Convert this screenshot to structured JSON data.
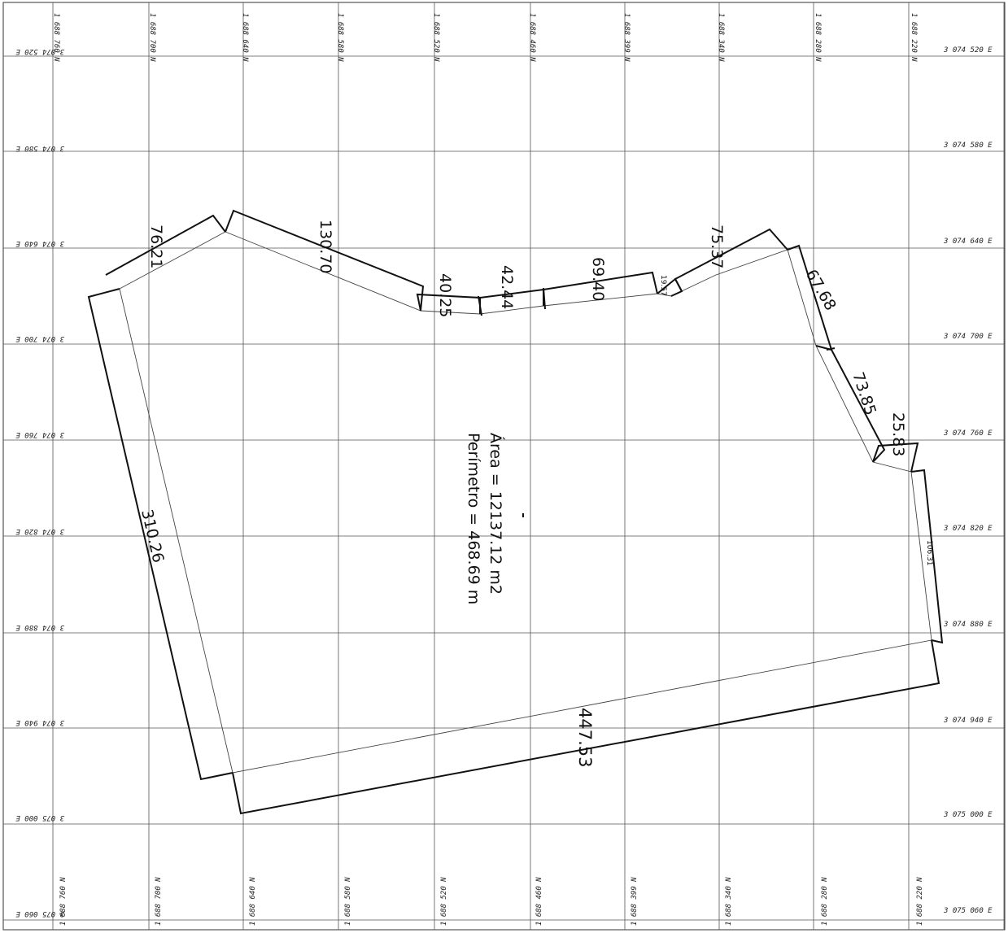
{
  "grid": {
    "north_labels_top": [
      "1 688 760 N",
      "1 688 700 N",
      "1 688 640 N",
      "1 688 580 N",
      "1 688 520 N",
      "1 688 460 N",
      "1 688 399 N",
      "1 688 340 N",
      "1 688 280 N",
      "1 688 220 N"
    ],
    "north_labels_bottom": [
      "1 688 760 N",
      "1 688 700 N",
      "1 688 640 N",
      "1 688 580 N",
      "1 688 520 N",
      "1 688 460 N",
      "1 688 399 N",
      "1 688 340 N",
      "1 688 280 N",
      "1 688 220 N"
    ],
    "east_labels_right": [
      "3 074 520 E",
      "3 074 580 E",
      "3 074 640 E",
      "3 074 700 E",
      "3 074 760 E",
      "3 074 820 E",
      "3 074 880 E",
      "3 074 940 E",
      "3 075 000 E",
      "3 075 060 E"
    ],
    "east_labels_left": [
      "3 074 520 E",
      "3 074 580 E",
      "3 074 640 E",
      "3 074 700 E",
      "3 074 760 E",
      "3 074 820 E",
      "3 074 880 E",
      "3 074 940 E",
      "3 075 000 E",
      "3 075 060 E"
    ]
  },
  "segments": [
    {
      "label": "76.21"
    },
    {
      "label": "130.70"
    },
    {
      "label": "40.25"
    },
    {
      "label": "42.44"
    },
    {
      "label": "69.40"
    },
    {
      "label": "19.57"
    },
    {
      "label": "75.37"
    },
    {
      "label": "67.68"
    },
    {
      "label": "73.85"
    },
    {
      "label": "25.83"
    },
    {
      "label": "106.31"
    },
    {
      "label": "447.53"
    },
    {
      "label": "310.26"
    }
  ],
  "info": {
    "area": "Área =  12137.12 m2",
    "perimeter": "Perímetro = 468.69 m"
  }
}
